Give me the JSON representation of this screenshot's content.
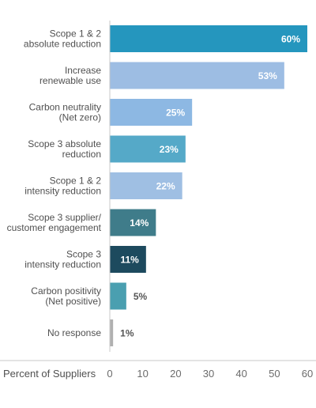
{
  "chart_data": {
    "type": "bar",
    "orientation": "horizontal",
    "categories": [
      [
        "Scope 1 & 2",
        "absolute reduction"
      ],
      [
        "Increase",
        "renewable use"
      ],
      [
        "Carbon neutrality",
        "(Net zero)"
      ],
      [
        "Scope 3 absolute",
        "reduction"
      ],
      [
        "Scope 1 & 2",
        "intensity reduction"
      ],
      [
        "Scope 3 supplier/",
        "customer engagement"
      ],
      [
        "Scope 3",
        "intensity reduction"
      ],
      [
        "Carbon positivity",
        "(Net positive)"
      ],
      [
        "No response"
      ]
    ],
    "values": [
      60,
      53,
      25,
      23,
      22,
      14,
      11,
      5,
      1
    ],
    "value_labels": [
      "60%",
      "53%",
      "25%",
      "23%",
      "22%",
      "14%",
      "11%",
      "5%",
      "1%"
    ],
    "colors": [
      "#2596be",
      "#9dbde3",
      "#8db8e3",
      "#55a9c8",
      "#9fbfe3",
      "#3f7c8a",
      "#1d4a5e",
      "#4a9fb0",
      "#b0b0b0"
    ],
    "value_label_colors": [
      "#ffffff",
      "#ffffff",
      "#ffffff",
      "#ffffff",
      "#ffffff",
      "#ffffff",
      "#ffffff",
      "#555555",
      "#555555"
    ],
    "xlabel": "Percent of Suppliers",
    "xlim": [
      0,
      60
    ],
    "xticks": [
      0,
      10,
      20,
      30,
      40,
      50,
      60
    ]
  }
}
